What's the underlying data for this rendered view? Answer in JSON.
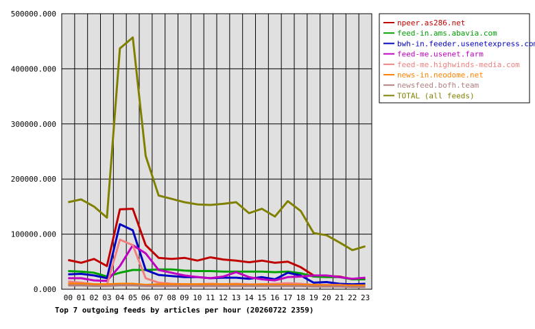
{
  "chart_data": {
    "type": "line",
    "title": "Top 7 outgoing feeds by articles per hour (20260722 2359)",
    "categories": [
      "00",
      "01",
      "02",
      "03",
      "04",
      "05",
      "06",
      "07",
      "08",
      "09",
      "10",
      "11",
      "12",
      "13",
      "14",
      "15",
      "16",
      "17",
      "18",
      "19",
      "20",
      "21",
      "22",
      "23"
    ],
    "ylim": [
      0,
      500000
    ],
    "yticks": [
      0,
      100000,
      200000,
      300000,
      400000,
      500000
    ],
    "ytick_labels": [
      "0.000",
      "100000.000",
      "200000.000",
      "300000.000",
      "400000.000",
      "500000.000"
    ],
    "grid": true,
    "legend_position": "top-right",
    "series": [
      {
        "name": "npeer.as286.net",
        "color": "#c00000",
        "values": [
          53000,
          48000,
          55000,
          42000,
          145000,
          146000,
          80000,
          57000,
          55000,
          57000,
          52000,
          58000,
          54000,
          52000,
          49000,
          52000,
          48000,
          50000,
          40000,
          25000,
          24000,
          23000,
          18000,
          20000
        ]
      },
      {
        "name": "feed-in.ams.abavia.com",
        "color": "#00a000",
        "values": [
          33000,
          32000,
          30000,
          23000,
          30000,
          35000,
          35000,
          36000,
          36000,
          34000,
          33000,
          33000,
          32000,
          32000,
          32000,
          32000,
          31000,
          32000,
          29000,
          23000,
          22000,
          22000,
          18000,
          18000
        ]
      },
      {
        "name": "bwh-in.feeder.usenetexpress.com",
        "color": "#0000c0",
        "values": [
          27000,
          28000,
          25000,
          20000,
          118000,
          107000,
          35000,
          26000,
          24000,
          22000,
          22000,
          20000,
          21000,
          21000,
          19000,
          22000,
          18000,
          30000,
          25000,
          12000,
          13000,
          10000,
          9000,
          10000
        ]
      },
      {
        "name": "feed-me.usenet.farm",
        "color": "#c000c0",
        "values": [
          20000,
          20000,
          16000,
          15000,
          42000,
          80000,
          65000,
          35000,
          30000,
          25000,
          22000,
          20000,
          23000,
          31000,
          22000,
          18000,
          16000,
          22000,
          23000,
          25000,
          25000,
          22000,
          19000,
          21000
        ]
      },
      {
        "name": "feed-me.highwinds-media.com",
        "color": "#f08080",
        "values": [
          14000,
          12000,
          9000,
          8000,
          90000,
          80000,
          20000,
          12000,
          10000,
          9000,
          9000,
          10000,
          9000,
          10000,
          9000,
          9000,
          10000,
          11000,
          10000,
          8000,
          8000,
          8000,
          6000,
          7000
        ]
      },
      {
        "name": "news-in.neodome.net",
        "color": "#ff8000",
        "values": [
          10000,
          10000,
          9000,
          9000,
          10000,
          10000,
          8000,
          9000,
          9000,
          9000,
          9000,
          9000,
          9000,
          9000,
          8000,
          9000,
          8000,
          8000,
          8000,
          8000,
          7000,
          7000,
          7000,
          7000
        ]
      },
      {
        "name": "newsfeed.bofh.team",
        "color": "#b08080",
        "values": [
          7000,
          7000,
          6000,
          6000,
          7000,
          7000,
          6000,
          6000,
          6000,
          6000,
          6000,
          6000,
          6000,
          6000,
          6000,
          6000,
          6000,
          6000,
          6000,
          5000,
          5000,
          5000,
          4000,
          4000
        ]
      },
      {
        "name": "TOTAL (all feeds)",
        "color": "#808000",
        "values": [
          158000,
          163000,
          150000,
          130000,
          437000,
          457000,
          242000,
          170000,
          164000,
          158000,
          154000,
          153000,
          155000,
          158000,
          138000,
          146000,
          132000,
          160000,
          142000,
          102000,
          98000,
          85000,
          71000,
          78000
        ]
      }
    ]
  }
}
